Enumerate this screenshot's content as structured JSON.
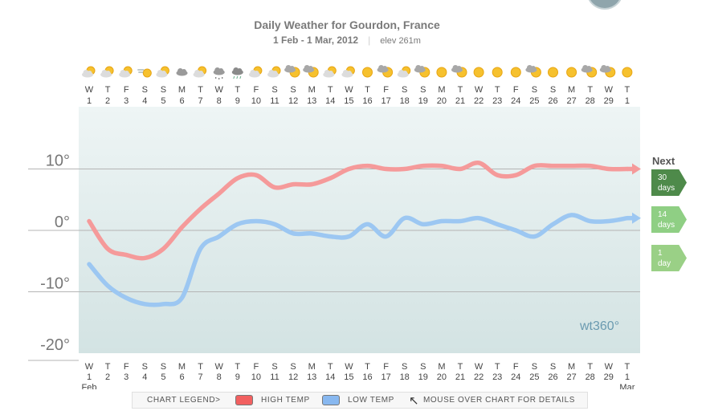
{
  "header": {
    "title": "Daily Weather for Gourdon, France",
    "dates": "1 Feb - 1 Mar, 2012",
    "separator": "|",
    "elevation": "elev 261m"
  },
  "days": {
    "weekdays": [
      "W",
      "T",
      "F",
      "S",
      "S",
      "M",
      "T",
      "W",
      "T",
      "F",
      "S",
      "S",
      "M",
      "T",
      "W",
      "T",
      "F",
      "S",
      "S",
      "M",
      "T",
      "W",
      "T",
      "F",
      "S",
      "S",
      "M",
      "T",
      "W",
      "T"
    ],
    "dates": [
      "1",
      "2",
      "3",
      "4",
      "5",
      "6",
      "7",
      "8",
      "9",
      "10",
      "11",
      "12",
      "13",
      "14",
      "15",
      "16",
      "17",
      "18",
      "19",
      "20",
      "21",
      "22",
      "23",
      "24",
      "25",
      "26",
      "27",
      "28",
      "29",
      "1"
    ],
    "icons": [
      "partly-sunny-icon",
      "partly-sunny-icon",
      "partly-sunny-icon",
      "partly-sunny-wind-icon",
      "partly-sunny-icon",
      "cloudy-icon",
      "partly-sunny-icon",
      "snow-cloud-icon",
      "rain-cloud-icon",
      "partly-sunny-icon",
      "partly-sunny-icon",
      "sunny-rain-icon",
      "sunny-rain-icon",
      "partly-sunny-icon",
      "partly-sunny-icon",
      "sunny-icon",
      "sunny-rain-icon",
      "partly-sunny-icon",
      "sunny-rain-icon",
      "sunny-icon",
      "sunny-rain-icon",
      "sunny-icon",
      "sunny-icon",
      "sunny-icon",
      "sunny-rain-icon",
      "sunny-icon",
      "sunny-icon",
      "sunny-rain-icon",
      "sunny-rain-icon",
      "sunny-icon"
    ],
    "month_start": "Feb",
    "month_end": "Mar"
  },
  "chart_data": {
    "type": "line",
    "x": [
      "1",
      "2",
      "3",
      "4",
      "5",
      "6",
      "7",
      "8",
      "9",
      "10",
      "11",
      "12",
      "13",
      "14",
      "15",
      "16",
      "17",
      "18",
      "19",
      "20",
      "21",
      "22",
      "23",
      "24",
      "25",
      "26",
      "27",
      "28",
      "29",
      "1"
    ],
    "series": [
      {
        "name": "HIGH TEMP",
        "color": "#f59a9a",
        "values": [
          1.5,
          -3,
          -4,
          -4.5,
          -3,
          0.5,
          3.5,
          6,
          8.5,
          9,
          7,
          7.5,
          7.5,
          8.5,
          10,
          10.5,
          10,
          10,
          10.5,
          10.5,
          10,
          11,
          9,
          9,
          10.5,
          10.5,
          10.5,
          10.5,
          10,
          10
        ]
      },
      {
        "name": "LOW TEMP",
        "color": "#9cc7f2",
        "values": [
          -5.5,
          -9,
          -11,
          -12,
          -12,
          -11,
          -3,
          -1,
          1,
          1.5,
          1,
          -0.5,
          -0.5,
          -1,
          -1,
          1,
          -1,
          2,
          1,
          1.5,
          1.5,
          2,
          1,
          0,
          -1,
          1,
          2.5,
          1.5,
          1.5,
          2
        ]
      }
    ],
    "y_ticks": [
      "10°",
      "0°",
      "-10°",
      "-20°"
    ],
    "y_tick_values": [
      10,
      0,
      -10,
      -20
    ],
    "ylim": [
      -20,
      20
    ],
    "grid": true,
    "watermark": "wt360°",
    "colors": {
      "plot_top": "#eef5f5",
      "plot_bottom": "#d3e3e3",
      "grid": "#b5b5b5"
    }
  },
  "nav": {
    "next_label": "Next",
    "buttons": [
      {
        "line1": "30",
        "line2": "days",
        "color": "#4e8a4a"
      },
      {
        "line1": "14",
        "line2": "days",
        "color": "#8fcf84"
      },
      {
        "line1": "1",
        "line2": "day",
        "color": "#9ad086"
      }
    ]
  },
  "legend": {
    "label": "CHART LEGEND>",
    "high": "HIGH TEMP",
    "high_color": "#f26060",
    "low": "LOW TEMP",
    "low_color": "#88b8f0",
    "hint": "MOUSE OVER CHART FOR DETAILS"
  }
}
